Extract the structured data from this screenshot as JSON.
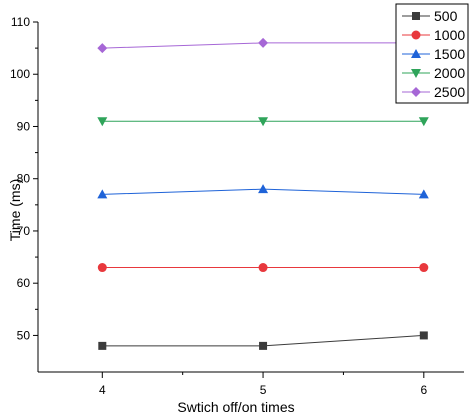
{
  "chart_data": {
    "type": "line",
    "xlabel": "Swtich off/on times",
    "ylabel": "Time (ms)",
    "x": [
      4,
      5,
      6
    ],
    "xlim": [
      3.6,
      6.25
    ],
    "ylim": [
      43,
      110
    ],
    "xticks": [
      4,
      5,
      6
    ],
    "yticks": [
      50,
      60,
      70,
      80,
      90,
      100,
      110
    ],
    "grid": false,
    "legend_position": "top-right",
    "series": [
      {
        "name": "500",
        "values": [
          48,
          48,
          50
        ],
        "color": "#3b3b3b",
        "marker": "square"
      },
      {
        "name": "1000",
        "values": [
          63,
          63,
          63
        ],
        "color": "#e8383d",
        "marker": "circle"
      },
      {
        "name": "1500",
        "values": [
          77,
          78,
          77
        ],
        "color": "#1f63d8",
        "marker": "triangle-up"
      },
      {
        "name": "2000",
        "values": [
          91,
          91,
          91
        ],
        "color": "#2fa45a",
        "marker": "triangle-down"
      },
      {
        "name": "2500",
        "values": [
          105,
          106,
          106
        ],
        "color": "#a667d6",
        "marker": "diamond"
      }
    ]
  }
}
